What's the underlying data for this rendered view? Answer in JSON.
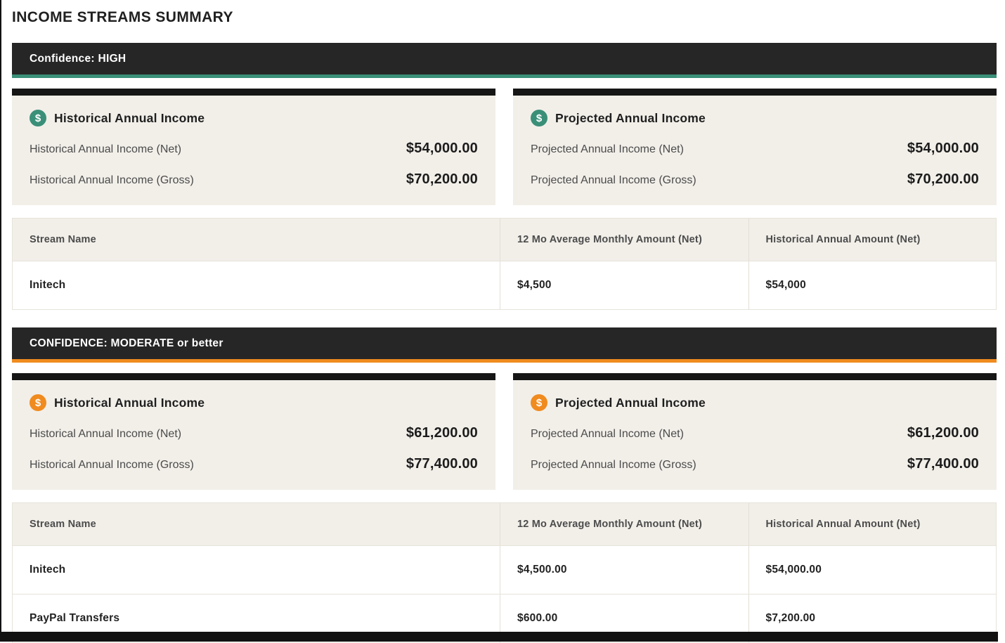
{
  "theme": {
    "high_accent": "#3A8F78",
    "moderate_accent": "#F08B1F",
    "banner_bg": "#262626",
    "card_bg": "#F2EFE9"
  },
  "icons": {
    "dollar": "$"
  },
  "page": {
    "title": "INCOME STREAMS SUMMARY"
  },
  "sections": [
    {
      "banner": "Confidence: HIGH",
      "cards": [
        {
          "title": "Historical Annual Income",
          "rows": [
            {
              "label": "Historical Annual Income (Net)",
              "value": "$54,000.00"
            },
            {
              "label": "Historical Annual Income (Gross)",
              "value": "$70,200.00"
            }
          ]
        },
        {
          "title": "Projected Annual Income",
          "rows": [
            {
              "label": "Projected Annual Income (Net)",
              "value": "$54,000.00"
            },
            {
              "label": "Projected Annual Income (Gross)",
              "value": "$70,200.00"
            }
          ]
        }
      ],
      "table": {
        "headers": [
          "Stream Name",
          "12 Mo Average Monthly Amount (Net)",
          "Historical Annual Amount (Net)"
        ],
        "rows": [
          [
            "Initech",
            "$4,500",
            "$54,000"
          ]
        ]
      }
    },
    {
      "banner": "CONFIDENCE: MODERATE or better",
      "cards": [
        {
          "title": "Historical Annual Income",
          "rows": [
            {
              "label": "Historical Annual Income (Net)",
              "value": "$61,200.00"
            },
            {
              "label": "Historical Annual Income (Gross)",
              "value": "$77,400.00"
            }
          ]
        },
        {
          "title": "Projected Annual Income",
          "rows": [
            {
              "label": "Projected Annual Income (Net)",
              "value": "$61,200.00"
            },
            {
              "label": "Projected Annual Income (Gross)",
              "value": "$77,400.00"
            }
          ]
        }
      ],
      "table": {
        "headers": [
          "Stream Name",
          "12 Mo Average Monthly Amount (Net)",
          "Historical Annual Amount (Net)"
        ],
        "rows": [
          [
            "Initech",
            "$4,500.00",
            "$54,000.00"
          ],
          [
            "PayPal Transfers",
            "$600.00",
            "$7,200.00"
          ]
        ]
      }
    }
  ]
}
